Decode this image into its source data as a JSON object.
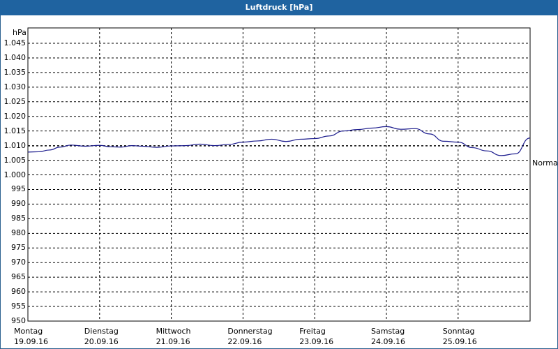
{
  "window": {
    "title": "Luftdruck [hPa]"
  },
  "colors": {
    "titlebar": "#1f63a0",
    "series": "#1a1a8c",
    "grid": "#000000",
    "normal_line": "#000000"
  },
  "chart_data": {
    "type": "line",
    "title": "Luftdruck [hPa]",
    "ylabel": "hPa",
    "xlabel": "",
    "ylim": [
      950,
      1045
    ],
    "yticks": [
      "1.045",
      "1.040",
      "1.035",
      "1.030",
      "1.025",
      "1.020",
      "1.015",
      "1.010",
      "1.005",
      "1.000",
      "995",
      "990",
      "985",
      "980",
      "975",
      "970",
      "965",
      "960",
      "955",
      "950"
    ],
    "x_categories": [
      {
        "day": "Montag",
        "date": "19.09.16"
      },
      {
        "day": "Dienstag",
        "date": "20.09.16"
      },
      {
        "day": "Mittwoch",
        "date": "21.09.16"
      },
      {
        "day": "Donnerstag",
        "date": "22.09.16"
      },
      {
        "day": "Freitag",
        "date": "23.09.16"
      },
      {
        "day": "Samstag",
        "date": "24.09.16"
      },
      {
        "day": "Sonntag",
        "date": "25.09.16"
      }
    ],
    "grid": true,
    "reference_line": {
      "label": "Normal",
      "value": 1010
    },
    "series": [
      {
        "name": "Luftdruck",
        "x_day_fraction": [
          0,
          0.15,
          0.3,
          0.45,
          0.6,
          0.8,
          1.0,
          1.15,
          1.3,
          1.45,
          1.6,
          1.8,
          2.0,
          2.2,
          2.4,
          2.6,
          2.8,
          3.0,
          3.2,
          3.4,
          3.6,
          3.8,
          4.0,
          4.2,
          4.4,
          4.6,
          4.8,
          5.0,
          5.2,
          5.4,
          5.6,
          5.8,
          6.0,
          6.2,
          6.4,
          6.6,
          6.8,
          7.0
        ],
        "values": [
          1007.8,
          1007.9,
          1008.5,
          1009.5,
          1010.2,
          1009.8,
          1010.1,
          1009.6,
          1009.5,
          1010.0,
          1009.8,
          1009.4,
          1009.9,
          1010.0,
          1010.5,
          1010.0,
          1010.4,
          1011.2,
          1011.6,
          1012.2,
          1011.4,
          1012.2,
          1012.4,
          1013.3,
          1015.0,
          1015.5,
          1016.0,
          1016.5,
          1015.6,
          1015.8,
          1014.0,
          1011.5,
          1011.2,
          1009.3,
          1008.2,
          1006.6,
          1007.2,
          1012.6
        ]
      }
    ]
  }
}
